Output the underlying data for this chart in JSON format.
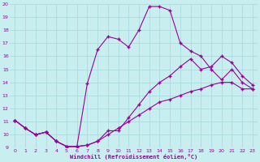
{
  "xlabel": "Windchill (Refroidissement éolien,°C)",
  "background_color": "#c8eef0",
  "grid_color": "#b0dde0",
  "line_color": "#990099",
  "xlim": [
    -0.5,
    23.5
  ],
  "ylim": [
    9,
    20
  ],
  "yticks": [
    9,
    10,
    11,
    12,
    13,
    14,
    15,
    16,
    17,
    18,
    19,
    20
  ],
  "xticks": [
    0,
    1,
    2,
    3,
    4,
    5,
    6,
    7,
    8,
    9,
    10,
    11,
    12,
    13,
    14,
    15,
    16,
    17,
    18,
    19,
    20,
    21,
    22,
    23
  ],
  "line1_x": [
    0,
    1,
    2,
    3,
    4,
    5,
    6,
    7,
    8,
    9,
    10,
    11,
    12,
    13,
    14,
    15,
    16,
    17,
    18,
    19,
    20,
    21,
    22,
    23
  ],
  "line1_y": [
    11.1,
    10.5,
    10.0,
    10.2,
    9.5,
    9.1,
    9.1,
    9.2,
    9.5,
    10.0,
    10.5,
    11.0,
    11.5,
    12.0,
    12.5,
    12.7,
    13.0,
    13.3,
    13.5,
    13.8,
    14.0,
    14.0,
    13.5,
    13.5
  ],
  "line2_x": [
    0,
    1,
    2,
    3,
    4,
    5,
    6,
    7,
    8,
    9,
    10,
    11,
    12,
    13,
    14,
    15,
    16,
    17,
    18,
    19,
    20,
    21,
    22,
    23
  ],
  "line2_y": [
    11.1,
    10.5,
    10.0,
    10.2,
    9.5,
    9.1,
    9.1,
    13.9,
    16.5,
    17.5,
    17.3,
    16.7,
    18.0,
    19.8,
    19.8,
    19.5,
    17.0,
    16.4,
    16.0,
    15.0,
    14.2,
    15.0,
    14.0,
    13.5
  ],
  "line3_x": [
    0,
    1,
    2,
    3,
    4,
    5,
    6,
    7,
    8,
    9,
    10,
    11,
    12,
    13,
    14,
    15,
    16,
    17,
    18,
    19,
    20,
    21,
    22,
    23
  ],
  "line3_y": [
    11.1,
    10.5,
    10.0,
    10.2,
    9.5,
    9.1,
    9.1,
    9.2,
    9.5,
    10.3,
    10.3,
    11.3,
    12.3,
    13.3,
    14.0,
    14.5,
    15.2,
    15.8,
    15.0,
    15.2,
    16.0,
    15.5,
    14.5,
    13.8
  ]
}
